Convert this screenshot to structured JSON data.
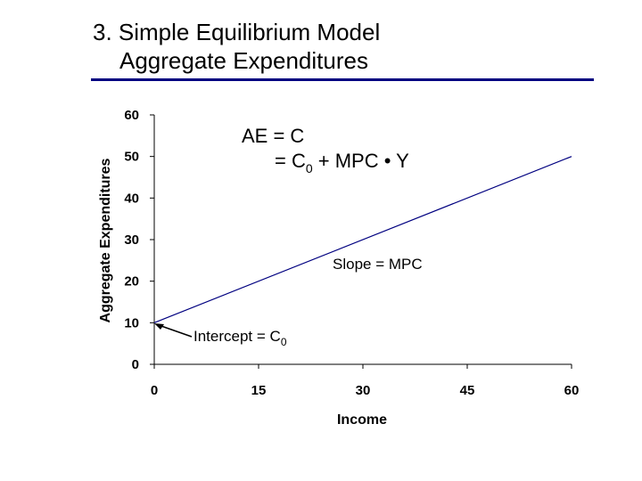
{
  "slide": {
    "title_line1": "3. Simple Equilibrium Model",
    "title_line2": "Aggregate Expenditures"
  },
  "colors": {
    "rule": "#000080",
    "line": "#000080",
    "axis": "#000000"
  },
  "chart_data": {
    "type": "line",
    "xlabel": "Income",
    "ylabel": "Aggregate Expenditures",
    "xlim": [
      0,
      60
    ],
    "ylim": [
      0,
      60
    ],
    "xticks": [
      0,
      15,
      30,
      45,
      60
    ],
    "yticks": [
      0,
      10,
      20,
      30,
      40,
      50,
      60
    ],
    "grid": false,
    "series": [
      {
        "x": [
          0,
          60
        ],
        "y": [
          10,
          50
        ]
      }
    ],
    "annotations": {
      "equation_line1": "AE = C",
      "equation_line2_prefix": "= C",
      "equation_line2_sub": "0",
      "equation_line2_suffix": " + MPC • Y",
      "slope_label": "Slope = MPC",
      "intercept_prefix": "Intercept = C",
      "intercept_sub": "0"
    }
  }
}
